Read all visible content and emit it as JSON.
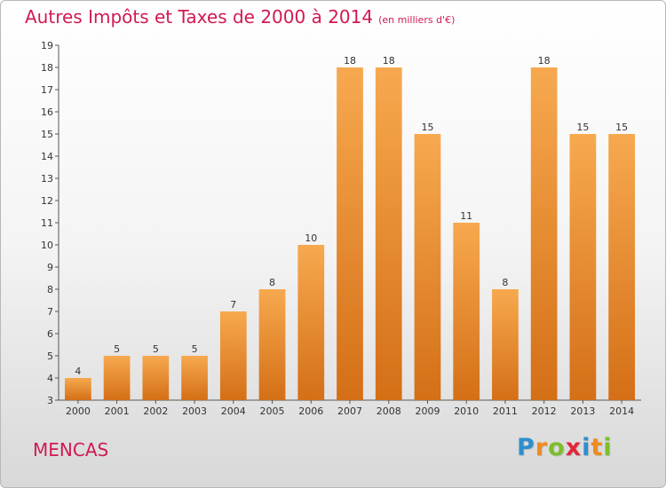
{
  "chart_data": {
    "type": "bar",
    "title": "Autres Impôts et Taxes de 2000 à 2014",
    "unit_note": "(en milliers d'€)",
    "categories": [
      "2000",
      "2001",
      "2002",
      "2003",
      "2004",
      "2005",
      "2006",
      "2007",
      "2008",
      "2009",
      "2010",
      "2011",
      "2012",
      "2013",
      "2014"
    ],
    "values": [
      4,
      5,
      5,
      5,
      7,
      8,
      10,
      18,
      18,
      15,
      11,
      8,
      18,
      15,
      15
    ],
    "ylim": [
      3,
      19
    ],
    "yticks": [
      3,
      4,
      5,
      6,
      7,
      8,
      9,
      10,
      11,
      12,
      13,
      14,
      15,
      16,
      17,
      18,
      19
    ],
    "xlabel": "",
    "ylabel": "",
    "grid": false,
    "legend": "none",
    "colors": {
      "bar_light": "#f7a94f",
      "bar_dark": "#d46f16",
      "title": "#d11a52",
      "axis": "#555555"
    }
  },
  "footer": {
    "commune": "MENCAS",
    "logo": {
      "text": "Proxiti",
      "letters": [
        {
          "char": "P",
          "color": "#2e8fd0"
        },
        {
          "char": "r",
          "color": "#f08a1c"
        },
        {
          "char": "o",
          "color": "#7cbf2a"
        },
        {
          "char": "x",
          "color": "#e0263a"
        },
        {
          "char": "i",
          "color": "#2e8fd0"
        },
        {
          "char": "t",
          "color": "#f08a1c"
        },
        {
          "char": "i",
          "color": "#7cbf2a"
        }
      ]
    }
  }
}
